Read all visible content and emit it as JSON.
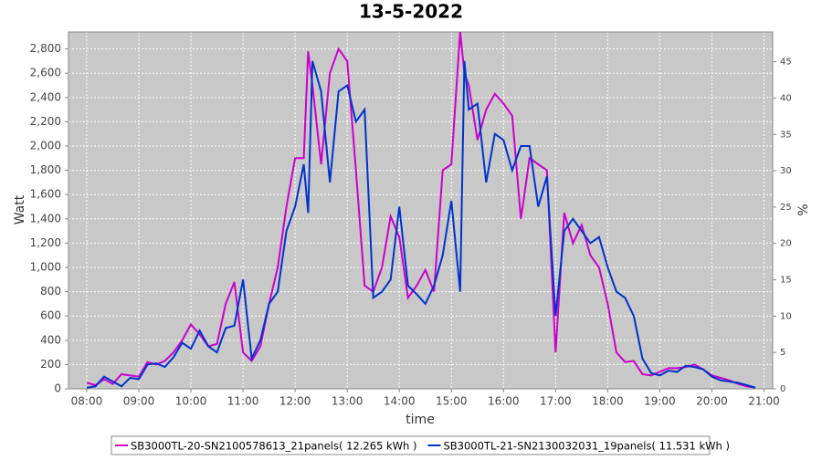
{
  "chart_data": {
    "type": "line",
    "title": "13-5-2022",
    "x_label": "time",
    "y_label": "Watt",
    "y2_label": "%",
    "x": [
      "08:00",
      "08:10",
      "08:20",
      "08:30",
      "08:40",
      "08:50",
      "09:00",
      "09:10",
      "09:20",
      "09:30",
      "09:40",
      "09:50",
      "10:00",
      "10:10",
      "10:20",
      "10:30",
      "10:40",
      "10:50",
      "11:00",
      "11:10",
      "11:20",
      "11:30",
      "11:40",
      "11:50",
      "12:00",
      "12:10",
      "12:15",
      "12:20",
      "12:30",
      "12:40",
      "12:50",
      "13:00",
      "13:10",
      "13:20",
      "13:30",
      "13:40",
      "13:50",
      "14:00",
      "14:10",
      "14:20",
      "14:30",
      "14:40",
      "14:50",
      "15:00",
      "15:10",
      "15:15",
      "15:20",
      "15:30",
      "15:40",
      "15:50",
      "16:00",
      "16:10",
      "16:20",
      "16:30",
      "16:40",
      "16:50",
      "17:00",
      "17:10",
      "17:20",
      "17:30",
      "17:40",
      "17:50",
      "18:00",
      "18:10",
      "18:20",
      "18:30",
      "18:40",
      "18:50",
      "19:00",
      "19:10",
      "19:20",
      "19:30",
      "19:40",
      "19:50",
      "20:00",
      "20:10",
      "20:20",
      "20:30",
      "20:40",
      "20:50"
    ],
    "series": [
      {
        "name": "SB3000TL-20-SN2100578613_21panels( 12.265 kWh )",
        "color": "#cc00cc",
        "values": [
          50,
          30,
          80,
          40,
          120,
          110,
          100,
          220,
          200,
          230,
          300,
          400,
          530,
          450,
          350,
          370,
          700,
          880,
          300,
          230,
          350,
          700,
          1000,
          1500,
          1900,
          1900,
          2780,
          2500,
          1850,
          2600,
          2800,
          2700,
          1800,
          850,
          800,
          1000,
          1420,
          1250,
          750,
          850,
          980,
          800,
          1800,
          1850,
          2940,
          2600,
          2500,
          2050,
          2300,
          2430,
          2350,
          2250,
          1400,
          1900,
          1850,
          1800,
          300,
          1450,
          1200,
          1350,
          1100,
          1000,
          700,
          300,
          220,
          230,
          120,
          110,
          140,
          170,
          170,
          180,
          200,
          160,
          110,
          90,
          70,
          40,
          20,
          10
        ]
      },
      {
        "name": "SB3000TL-21-SN2130032031_19panels( 11.531 kWh )",
        "color": "#0033cc",
        "values": [
          10,
          20,
          100,
          60,
          20,
          90,
          80,
          200,
          210,
          180,
          260,
          380,
          330,
          480,
          350,
          300,
          500,
          520,
          900,
          250,
          400,
          700,
          800,
          1300,
          1500,
          1850,
          1450,
          2700,
          2450,
          1700,
          2450,
          2500,
          2200,
          2300,
          750,
          800,
          900,
          1500,
          850,
          780,
          700,
          850,
          1100,
          1550,
          800,
          2700,
          2300,
          2350,
          1700,
          2100,
          2050,
          1800,
          2000,
          2000,
          1500,
          1750,
          600,
          1300,
          1400,
          1300,
          1200,
          1250,
          1000,
          800,
          750,
          600,
          250,
          130,
          110,
          150,
          140,
          190,
          180,
          160,
          100,
          70,
          60,
          50,
          30,
          10
        ]
      }
    ],
    "xlim": [
      "07:39",
      "21:10"
    ],
    "xticks": [
      "08:00",
      "09:00",
      "10:00",
      "11:00",
      "12:00",
      "13:00",
      "14:00",
      "15:00",
      "16:00",
      "17:00",
      "18:00",
      "19:00",
      "20:00",
      "21:00"
    ],
    "ylim": [
      0,
      2940
    ],
    "yticks": [
      0,
      200,
      400,
      600,
      {
        "value": 800,
        "label": "800"
      },
      {
        "value": 1000,
        "label": "1,000"
      },
      {
        "value": 1200,
        "label": "1,200"
      },
      {
        "value": 1400,
        "label": "1,400"
      },
      {
        "value": 1600,
        "label": "1,600"
      },
      {
        "value": 1800,
        "label": "1,800"
      },
      {
        "value": 2000,
        "label": "2,000"
      },
      {
        "value": 2200,
        "label": "2,200"
      },
      {
        "value": 2400,
        "label": "2,400"
      },
      {
        "value": 2600,
        "label": "2,600"
      },
      {
        "value": 2800,
        "label": "2,800"
      }
    ],
    "y2lim": [
      0,
      49.1
    ],
    "y2ticks": [
      0,
      5,
      10,
      15,
      20,
      25,
      30,
      35,
      40,
      45
    ],
    "grid": true
  }
}
